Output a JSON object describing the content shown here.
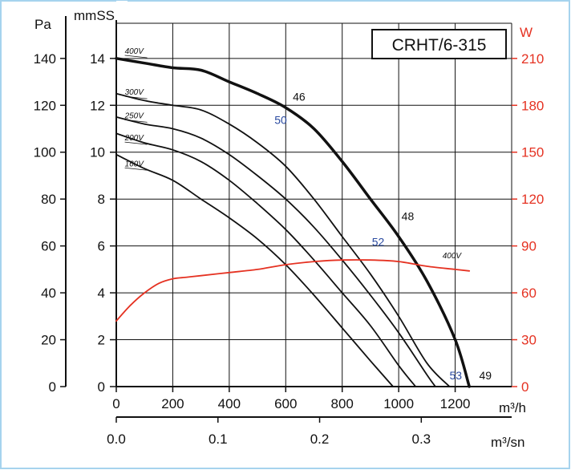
{
  "chart_data": {
    "type": "line",
    "title": "CRHT/6-315",
    "axes": {
      "pressure_mmss": {
        "label": "mmSS",
        "ticks": [
          0,
          2,
          4,
          6,
          8,
          10,
          12,
          14
        ],
        "range": [
          0,
          15.5
        ]
      },
      "pressure_pa": {
        "label": "Pa",
        "ticks": [
          0,
          20,
          40,
          60,
          80,
          100,
          120,
          140
        ]
      },
      "power_w": {
        "label": "W",
        "ticks": [
          0,
          30,
          60,
          90,
          120,
          150,
          180,
          210
        ],
        "range": [
          0,
          232.5
        ],
        "color": "#e53222"
      },
      "flow_m3h": {
        "label": "m³/h",
        "ticks": [
          0,
          200,
          400,
          600,
          800,
          1000,
          1200
        ],
        "range": [
          0,
          1400
        ]
      },
      "flow_m3s": {
        "label": "m³/sn",
        "ticks": [
          "0.0",
          "0.1",
          "0.2",
          "0.3"
        ],
        "tick_values": [
          0,
          0.1,
          0.2,
          0.3
        ]
      }
    },
    "grid": true,
    "series": [
      {
        "name": "400V",
        "axis": "pressure_mmss",
        "stroke": "thick",
        "color": "#111111",
        "x": [
          0,
          100,
          200,
          300,
          400,
          500,
          600,
          700,
          800,
          900,
          1000,
          1100,
          1200,
          1250
        ],
        "y": [
          14.0,
          13.8,
          13.6,
          13.5,
          13.0,
          12.5,
          11.9,
          11.0,
          9.6,
          8.0,
          6.4,
          4.5,
          2.0,
          0
        ]
      },
      {
        "name": "300V",
        "axis": "pressure_mmss",
        "stroke": "normal",
        "color": "#111111",
        "x": [
          0,
          100,
          200,
          300,
          400,
          500,
          600,
          700,
          800,
          900,
          1000,
          1100,
          1180
        ],
        "y": [
          12.5,
          12.2,
          12.0,
          11.8,
          11.2,
          10.4,
          9.4,
          8.0,
          6.4,
          4.8,
          3.0,
          1.0,
          0
        ]
      },
      {
        "name": "250V",
        "axis": "pressure_mmss",
        "stroke": "normal",
        "color": "#111111",
        "x": [
          0,
          100,
          200,
          300,
          400,
          500,
          600,
          700,
          800,
          900,
          1000,
          1100,
          1130
        ],
        "y": [
          11.5,
          11.2,
          11.0,
          10.6,
          9.9,
          9.0,
          8.0,
          6.8,
          5.4,
          3.9,
          2.3,
          0.5,
          0
        ]
      },
      {
        "name": "200V",
        "axis": "pressure_mmss",
        "stroke": "normal",
        "color": "#111111",
        "x": [
          0,
          100,
          200,
          300,
          400,
          500,
          600,
          700,
          800,
          900,
          1000,
          1060
        ],
        "y": [
          10.8,
          10.4,
          10.1,
          9.6,
          8.8,
          7.8,
          6.7,
          5.4,
          4.0,
          2.6,
          0.9,
          0
        ]
      },
      {
        "name": "160V",
        "axis": "pressure_mmss",
        "stroke": "normal",
        "color": "#111111",
        "x": [
          0,
          100,
          200,
          300,
          400,
          500,
          600,
          700,
          800,
          900,
          980
        ],
        "y": [
          9.9,
          9.3,
          8.8,
          8.0,
          7.2,
          6.3,
          5.2,
          3.9,
          2.5,
          1.1,
          0
        ]
      },
      {
        "name": "400V",
        "axis": "power_w",
        "stroke": "normal",
        "color": "#e53222",
        "x": [
          0,
          50,
          100,
          150,
          200,
          250,
          300,
          400,
          500,
          600,
          700,
          800,
          900,
          1000,
          1100,
          1200,
          1250
        ],
        "y": [
          42,
          52,
          60,
          66,
          69,
          70,
          71,
          73,
          75,
          78,
          80,
          81,
          81,
          80,
          77,
          75,
          74
        ]
      }
    ],
    "annotations": [
      {
        "text": "46",
        "color": "black",
        "x": 625,
        "y": 12.2
      },
      {
        "text": "50",
        "color": "blue",
        "x": 560,
        "y": 11.2
      },
      {
        "text": "48",
        "color": "black",
        "x": 1010,
        "y": 7.1
      },
      {
        "text": "52",
        "color": "blue",
        "x": 905,
        "y": 6.0
      },
      {
        "text": "49",
        "color": "black",
        "x": 1285,
        "y": 0.3
      },
      {
        "text": "53",
        "color": "blue",
        "x": 1180,
        "y": 0.3
      }
    ]
  }
}
